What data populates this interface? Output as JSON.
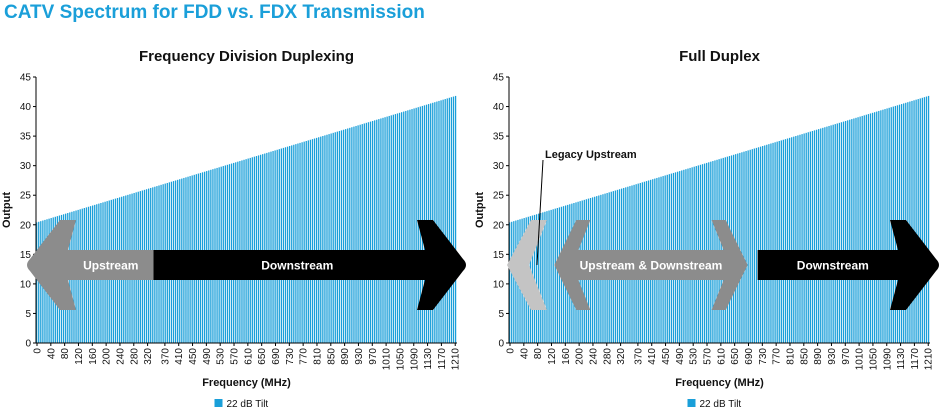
{
  "page_title": "CATV Spectrum for FDD vs. FDX Transmission",
  "colors": {
    "bar": "#1a9fd9",
    "arrow_gray": "#8c8c8c",
    "arrow_light": "#c4c4c4",
    "arrow_black": "#000000",
    "title": "#1a9fd9"
  },
  "chart_data": [
    {
      "type": "bar",
      "title": "Frequency Division Duplexing",
      "xlabel": "Frequency (MHz)",
      "ylabel": "Output",
      "ylim": [
        0,
        45
      ],
      "xlim": [
        0,
        1218
      ],
      "bar_spacing_mhz": 6,
      "series": [
        {
          "name": "22 dB Tilt",
          "start": 20.4,
          "end": 41.8
        }
      ],
      "legend": {
        "position": "bottom-center",
        "label": "22 dB Tilt"
      },
      "xticks": [
        0,
        40,
        80,
        120,
        160,
        200,
        240,
        280,
        320,
        370,
        410,
        450,
        490,
        530,
        570,
        610,
        650,
        690,
        730,
        770,
        810,
        850,
        890,
        930,
        970,
        1010,
        1050,
        1090,
        1130,
        1170,
        1210
      ],
      "yticks": [
        0,
        5,
        10,
        15,
        20,
        25,
        30,
        35,
        40,
        45
      ],
      "annotations": [
        {
          "label": "Upstream",
          "from_mhz": 0,
          "to_mhz": 340,
          "style": "left-arrow-gray"
        },
        {
          "label": "Downstream",
          "from_mhz": 340,
          "to_mhz": 1218,
          "style": "right-arrow-black"
        }
      ]
    },
    {
      "type": "bar",
      "title": "Full Duplex",
      "xlabel": "Frequency (MHz)",
      "ylabel": "Output",
      "ylim": [
        0,
        45
      ],
      "xlim": [
        0,
        1218
      ],
      "bar_spacing_mhz": 6,
      "series": [
        {
          "name": "22 dB Tilt",
          "start": 20.4,
          "end": 41.8
        }
      ],
      "legend": {
        "position": "bottom-center",
        "label": "22 dB Tilt"
      },
      "xticks": [
        0,
        40,
        80,
        120,
        160,
        200,
        240,
        280,
        320,
        370,
        410,
        450,
        490,
        530,
        570,
        610,
        650,
        690,
        730,
        770,
        810,
        850,
        890,
        930,
        970,
        1010,
        1050,
        1090,
        1130,
        1170,
        1210
      ],
      "yticks": [
        0,
        5,
        10,
        15,
        20,
        25,
        30,
        35,
        40,
        45
      ],
      "annotations": [
        {
          "label": "Legacy Upstream",
          "from_mhz": 0,
          "to_mhz": 108,
          "style": "double-arrow-light"
        },
        {
          "label": "Upstream & Downstream",
          "from_mhz": 108,
          "to_mhz": 702,
          "style": "double-arrow-gray"
        },
        {
          "label": "Downstream",
          "from_mhz": 702,
          "to_mhz": 1218,
          "style": "right-arrow-black"
        }
      ]
    }
  ]
}
